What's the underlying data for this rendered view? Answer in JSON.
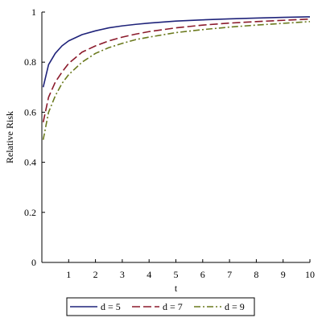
{
  "chart_data": {
    "type": "line",
    "xlabel": "t",
    "ylabel": "Relative Risk",
    "xlim": [
      0,
      10
    ],
    "ylim": [
      0,
      1
    ],
    "xticks": [
      1,
      2,
      3,
      4,
      5,
      6,
      7,
      8,
      9,
      10
    ],
    "yticks": [
      0,
      0.2,
      0.4,
      0.6,
      0.8,
      1
    ],
    "ytick_labels": [
      "0",
      "0.2",
      "0.4",
      "0.6",
      "0.8",
      "1"
    ],
    "grid": false,
    "legend_position": "bottom",
    "series": [
      {
        "name": "d = 5",
        "color": "#1f237a",
        "dash": "solid",
        "x": [
          0.05,
          0.25,
          0.5,
          0.75,
          1,
          1.5,
          2,
          2.5,
          3,
          3.5,
          4,
          5,
          6,
          7,
          8,
          9,
          10
        ],
        "y": [
          0.7,
          0.79,
          0.835,
          0.865,
          0.885,
          0.91,
          0.925,
          0.937,
          0.945,
          0.951,
          0.956,
          0.964,
          0.969,
          0.973,
          0.976,
          0.979,
          0.981
        ]
      },
      {
        "name": "d = 7",
        "color": "#8b1a2b",
        "dash": "dash",
        "x": [
          0.05,
          0.25,
          0.5,
          0.75,
          1,
          1.5,
          2,
          2.5,
          3,
          3.5,
          4,
          5,
          6,
          7,
          8,
          9,
          10
        ],
        "y": [
          0.56,
          0.66,
          0.72,
          0.76,
          0.795,
          0.84,
          0.865,
          0.885,
          0.9,
          0.912,
          0.922,
          0.937,
          0.948,
          0.956,
          0.962,
          0.967,
          0.972
        ]
      },
      {
        "name": "d = 9",
        "color": "#6b7a1e",
        "dash": "dashdot",
        "x": [
          0.05,
          0.25,
          0.5,
          0.75,
          1,
          1.5,
          2,
          2.5,
          3,
          3.5,
          4,
          5,
          6,
          7,
          8,
          9,
          10
        ],
        "y": [
          0.49,
          0.6,
          0.665,
          0.715,
          0.75,
          0.8,
          0.835,
          0.858,
          0.875,
          0.89,
          0.9,
          0.918,
          0.93,
          0.94,
          0.948,
          0.955,
          0.962
        ]
      }
    ]
  }
}
